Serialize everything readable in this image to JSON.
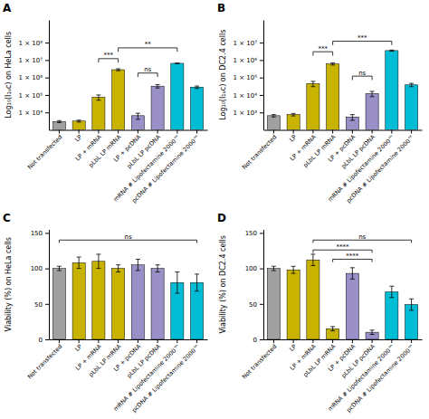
{
  "chart_data": [
    {
      "type": "bar",
      "title": "A",
      "ylabel": "Log₁₀(I₁ᵤᴄ) on HeLa cells",
      "categories": [
        "Not transfected",
        "LP",
        "LP + mRNA",
        "pLbL LP mRNA",
        "LP + pcDNA",
        "pLbL LP pcDNA",
        "mRNA # Lipofectamine 2000™",
        "pcDNA # Lipofectamine 2000™"
      ],
      "values": [
        3000,
        3200,
        75000,
        2800000,
        6500,
        320000,
        6500000,
        280000
      ],
      "errors": [
        400,
        400,
        25000,
        350000,
        2500,
        70000,
        180000,
        45000
      ],
      "colors": [
        "#a0a0a0",
        "#c8b400",
        "#c8b400",
        "#c8b400",
        "#9b8fc8",
        "#9b8fc8",
        "#00bcd4",
        "#00bcd4"
      ],
      "log": "y",
      "ylim": [
        1000,
        2000000000
      ],
      "yticks": [
        {
          "value": 10000,
          "label": "1 × 10⁴"
        },
        {
          "value": 100000,
          "label": "1 × 10⁵"
        },
        {
          "value": 1000000,
          "label": "1 × 10⁶"
        },
        {
          "value": 10000000,
          "label": "1 × 10⁷"
        },
        {
          "value": 100000000,
          "label": "1 × 10⁸"
        }
      ],
      "grid": false,
      "annotations": [
        {
          "label": "***",
          "from": "LP + mRNA",
          "to": "pLbL LP mRNA",
          "y": 12000000
        },
        {
          "label": "**",
          "from": "pLbL LP mRNA",
          "to": "mRNA # Lipofectamine 2000™",
          "y": 50000000
        },
        {
          "label": "ns",
          "from": "LP + pcDNA",
          "to": "pLbL LP pcDNA",
          "y": 1800000
        }
      ]
    },
    {
      "type": "bar",
      "title": "B",
      "ylabel": "Log₁₀(I₁ᵤᴄ) on DC2.4 cells",
      "categories": [
        "Not transfected",
        "LP",
        "LP + mRNA",
        "pLbL LP mRNA",
        "LP + pcDNA",
        "pLbL LP pcDNA",
        "mRNA # Lipofectamine 2000™",
        "pcDNA # Lipofectamine 2000™"
      ],
      "values": [
        650,
        750,
        45000,
        600000,
        550,
        12000,
        3500000,
        38000
      ],
      "errors": [
        100,
        120,
        15000,
        80000,
        200,
        4000,
        250000,
        8000
      ],
      "colors": [
        "#a0a0a0",
        "#c8b400",
        "#c8b400",
        "#c8b400",
        "#9b8fc8",
        "#9b8fc8",
        "#00bcd4",
        "#00bcd4"
      ],
      "log": "y",
      "ylim": [
        100,
        200000000
      ],
      "yticks": [
        {
          "value": 1000,
          "label": "1 × 10³"
        },
        {
          "value": 10000,
          "label": "1 × 10⁴"
        },
        {
          "value": 100000,
          "label": "1 × 10⁵"
        },
        {
          "value": 1000000,
          "label": "1 × 10⁶"
        },
        {
          "value": 10000000,
          "label": "1 × 10⁷"
        }
      ],
      "grid": false,
      "annotations": [
        {
          "label": "***",
          "from": "LP + mRNA",
          "to": "pLbL LP mRNA",
          "y": 3000000
        },
        {
          "label": "***",
          "from": "pLbL LP mRNA",
          "to": "mRNA # Lipofectamine 2000™",
          "y": 12000000
        },
        {
          "label": "ns",
          "from": "LP + pcDNA",
          "to": "pLbL LP pcDNA",
          "y": 120000
        }
      ]
    },
    {
      "type": "bar",
      "title": "C",
      "ylabel": "Viability (%) on HeLa cells",
      "categories": [
        "Not transfected",
        "LP",
        "LP + mRNA",
        "pLbL LP mRNA",
        "LP + pcDNA",
        "pLbL LP pcDNA",
        "mRNA # Lipofectamine 2000™",
        "pcDNA # Lipofectamine 2000™"
      ],
      "values": [
        100,
        108,
        110,
        100,
        105,
        100,
        80,
        80
      ],
      "errors": [
        3,
        8,
        10,
        5,
        8,
        5,
        15,
        12
      ],
      "colors": [
        "#a0a0a0",
        "#c8b400",
        "#c8b400",
        "#c8b400",
        "#9b8fc8",
        "#9b8fc8",
        "#00bcd4",
        "#00bcd4"
      ],
      "ylim": [
        0,
        155
      ],
      "yticks": [
        0,
        50,
        100,
        150
      ],
      "grid": false,
      "annotations": [
        {
          "label": "ns",
          "from": "Not transfected",
          "to": "pcDNA # Lipofectamine 2000™",
          "y": 140
        }
      ]
    },
    {
      "type": "bar",
      "title": "D",
      "ylabel": "Viability (%) on DC2.4 cells",
      "categories": [
        "Not transfected",
        "LP",
        "LP + mRNA",
        "pLbL LP mRNA",
        "LP + pcDNA",
        "pLbL LP pcDNA",
        "mRNA # Lipofectamine 2000™",
        "pcDNA # Lipofectamine 2000™"
      ],
      "values": [
        100,
        98,
        112,
        15,
        93,
        10,
        67,
        49
      ],
      "errors": [
        3,
        5,
        8,
        3,
        8,
        3,
        8,
        8
      ],
      "colors": [
        "#a0a0a0",
        "#c8b400",
        "#c8b400",
        "#c8b400",
        "#9b8fc8",
        "#9b8fc8",
        "#00bcd4",
        "#00bcd4"
      ],
      "ylim": [
        0,
        155
      ],
      "yticks": [
        0,
        50,
        100,
        150
      ],
      "grid": false,
      "annotations": [
        {
          "label": "ns",
          "from": "LP + mRNA",
          "to": "pcDNA # Lipofectamine 2000™",
          "y": 140
        },
        {
          "label": "****",
          "from": "LP + mRNA",
          "to": "pLbL LP pcDNA",
          "y": 126
        },
        {
          "label": "****",
          "from": "pLbL LP mRNA",
          "to": "pLbL LP pcDNA",
          "y": 113
        }
      ]
    }
  ]
}
